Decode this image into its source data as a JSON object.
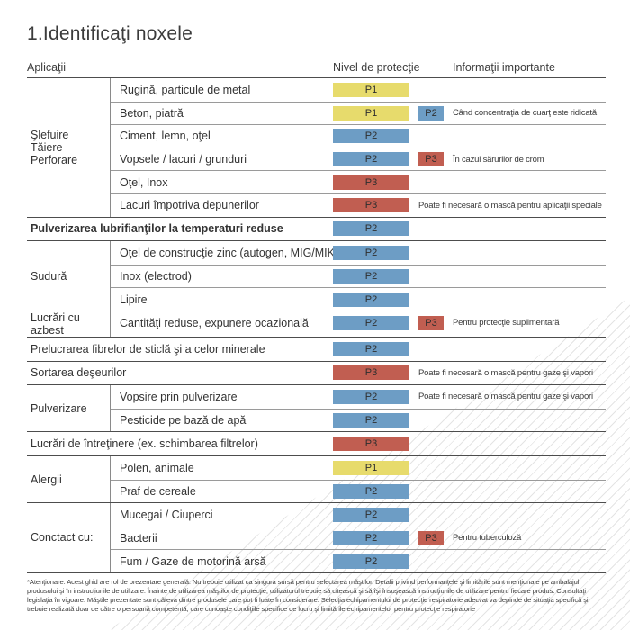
{
  "page": {
    "title": "1.Identificaţi noxele",
    "footnote": "*Atenţionare: Acest ghid are rol de prezentare generală. Nu trebuie utilizat ca singura sursă pentru selectarea măştilor. Detalii privind performanţele şi limitările sunt menţionate pe ambalajul produsului şi în instrucţiunile de utilizare. Înainte de utilizarea măştilor de protecţie, utilizatorul trebuie să citească şi să îşi însuşească instrucţiunile de utilizare pentru fiecare produs. Consultaţi legislaţia în vigoare. Măştile prezentate sunt câteva dintre produsele care pot fi luate în considerare. Selecţia echipamentului de protecţie respiratorie adecvat va depinde de situaţia specifică şi trebuie realizată doar de către o persoană competentă, care cunoaşte condiţiile specifice de lucru şi limitările echipamentelor pentru protecţie respiratorie"
  },
  "header": {
    "col_applications": "Aplicaţii",
    "col_protection": "Nivel de protecţie",
    "col_info": "Informaţii importante"
  },
  "badge_colors": {
    "P1": "#e7db6c",
    "P2": "#6d9dc5",
    "P3": "#c15e51"
  },
  "decor": {
    "hatch_color": "#e4e4e4"
  },
  "table": {
    "groups": [
      {
        "category": "Şlefuire\nTăiere\nPerforare",
        "rows": [
          {
            "label": "Rugină, particule de metal",
            "badge": "P1"
          },
          {
            "label": "Beton, piatră",
            "badge": "P1",
            "badge2": "P2",
            "info": "Când concentraţia de cuarţ este ridicată"
          },
          {
            "label": "Ciment, lemn, oţel",
            "badge": "P2"
          },
          {
            "label": "Vopsele / lacuri / grunduri",
            "badge": "P2",
            "badge2": "P3",
            "info": "În cazul sărurilor de crom"
          },
          {
            "label": "Oţel, Inox",
            "badge": "P3"
          },
          {
            "label": "Lacuri împotriva depunerilor",
            "badge": "P3",
            "info": "Poate fi necesară o mască pentru aplicaţii speciale"
          }
        ]
      },
      {
        "category": "",
        "rows": [
          {
            "label": "Pulverizarea lubrifianţilor la temperaturi reduse",
            "badge": "P2",
            "bold": true
          }
        ]
      },
      {
        "category": "Sudură",
        "rows": [
          {
            "label": "Oţel de construcţie zinc (autogen, MIG/MIK)",
            "badge": "P2"
          },
          {
            "label": "Inox (electrod)",
            "badge": "P2"
          },
          {
            "label": "Lipire",
            "badge": "P2"
          }
        ]
      },
      {
        "category": "Lucrări cu azbest",
        "rows": [
          {
            "label": "Cantităţi reduse, expunere ocazională",
            "badge": "P2",
            "badge2": "P3",
            "info": "Pentru protecţie suplimentară"
          }
        ]
      },
      {
        "category": "",
        "rows": [
          {
            "label": "Prelucrarea fibrelor de sticlă şi a celor minerale",
            "badge": "P2"
          }
        ]
      },
      {
        "category": "",
        "rows": [
          {
            "label": "Sortarea deşeurilor",
            "badge": "P3",
            "info": "Poate fi necesară o mască pentru gaze şi vapori"
          }
        ]
      },
      {
        "category": "Pulverizare",
        "rows": [
          {
            "label": "Vopsire prin pulverizare",
            "badge": "P2",
            "info": "Poate fi necesară o mască pentru gaze şi vapori"
          },
          {
            "label": "Pesticide pe bază de apă",
            "badge": "P2"
          }
        ]
      },
      {
        "category": "",
        "rows": [
          {
            "label": "Lucrări de întreţinere (ex. schimbarea filtrelor)",
            "badge": "P3"
          }
        ]
      },
      {
        "category": "Alergii",
        "rows": [
          {
            "label": "Polen, animale",
            "badge": "P1"
          },
          {
            "label": "Praf de cereale",
            "badge": "P2"
          }
        ]
      },
      {
        "category": "Conctact cu:",
        "rows": [
          {
            "label": "Mucegai / Ciuperci",
            "badge": "P2"
          },
          {
            "label": "Bacterii",
            "badge": "P2",
            "badge2": "P3",
            "info": "Pentru tuberculoză"
          },
          {
            "label": "Fum / Gaze de motorină arsă",
            "badge": "P2"
          }
        ]
      }
    ]
  }
}
